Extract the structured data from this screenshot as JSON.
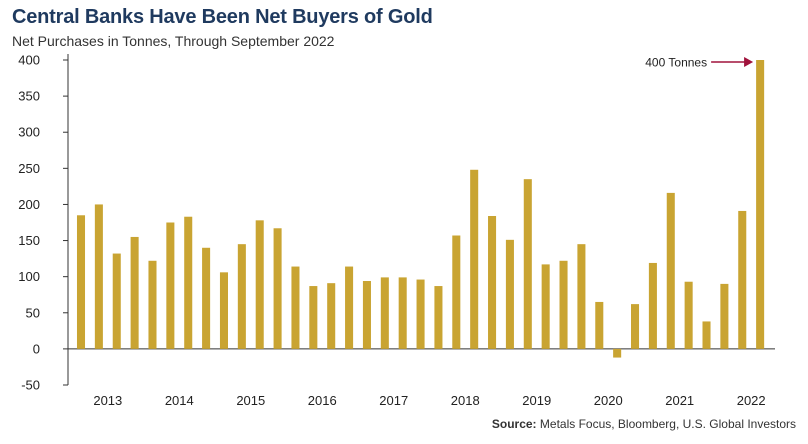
{
  "chart_data": {
    "type": "bar",
    "title": "Central Banks Have Been Net Buyers of Gold",
    "subtitle": "Net Purchases in Tonnes, Through September 2022",
    "xlabel": "",
    "ylabel": "",
    "ylim": [
      -50,
      400
    ],
    "yticks": [
      -50,
      0,
      50,
      100,
      150,
      200,
      250,
      300,
      350,
      400
    ],
    "grid": false,
    "year_labels": [
      "2013",
      "2014",
      "2015",
      "2016",
      "2017",
      "2018",
      "2019",
      "2020",
      "2021",
      "2022"
    ],
    "categories": [
      "2013 Q1",
      "2013 Q2",
      "2013 Q3",
      "2013 Q4",
      "2014 Q1",
      "2014 Q2",
      "2014 Q3",
      "2014 Q4",
      "2015 Q1",
      "2015 Q2",
      "2015 Q3",
      "2015 Q4",
      "2016 Q1",
      "2016 Q2",
      "2016 Q3",
      "2016 Q4",
      "2017 Q1",
      "2017 Q2",
      "2017 Q3",
      "2017 Q4",
      "2018 Q1",
      "2018 Q2",
      "2018 Q3",
      "2018 Q4",
      "2019 Q1",
      "2019 Q2",
      "2019 Q3",
      "2019 Q4",
      "2020 Q1",
      "2020 Q2",
      "2020 Q3",
      "2020 Q4",
      "2021 Q1",
      "2021 Q2",
      "2021 Q3",
      "2021 Q4",
      "2022 Q1",
      "2022 Q2",
      "2022 Q3"
    ],
    "values": [
      185,
      200,
      132,
      155,
      122,
      175,
      183,
      140,
      106,
      145,
      178,
      167,
      114,
      87,
      91,
      114,
      94,
      99,
      99,
      96,
      87,
      157,
      248,
      184,
      151,
      235,
      117,
      122,
      145,
      65,
      -12,
      62,
      119,
      216,
      93,
      38,
      90,
      191,
      400
    ],
    "annotation": "400 Tonnes",
    "bar_color": "#c9a432",
    "annotation_color": "#a0123c"
  },
  "footer": {
    "source_label": "Source:",
    "source_text": " Metals Focus, Bloomberg, U.S. Global Investors"
  }
}
